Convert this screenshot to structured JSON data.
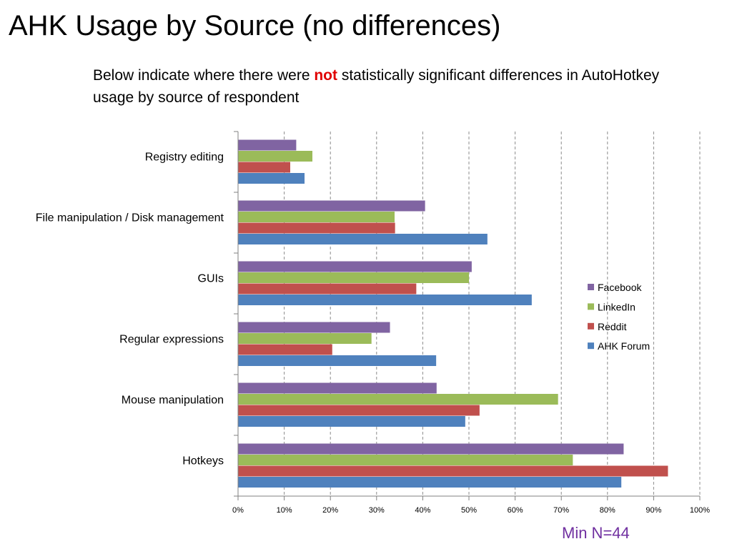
{
  "page": {
    "title": "AHK Usage by Source  (no differences)",
    "subtitle_before": "Below indicate where there were ",
    "subtitle_emphasis": "not",
    "subtitle_after": " statistically significant differences in AutoHotkey usage by source of respondent",
    "footnote": "Min N=44"
  },
  "chart_data": {
    "type": "bar",
    "orientation": "horizontal",
    "title": "",
    "xlabel": "",
    "ylabel": "",
    "xlim": [
      0,
      100
    ],
    "grid": "vertical dashed",
    "legend_position": "right",
    "tick_labels": [
      "0%",
      "10%",
      "20%",
      "30%",
      "40%",
      "50%",
      "60%",
      "70%",
      "80%",
      "90%",
      "100%"
    ],
    "categories": [
      "Registry editing",
      "File manipulation / Disk management",
      "GUIs",
      "Regular expressions",
      "Mouse manipulation",
      "Hotkeys"
    ],
    "series": [
      {
        "name": "Facebook",
        "color": "#8064a2",
        "values": [
          12.6,
          40.5,
          50.6,
          32.9,
          43.0,
          83.5
        ]
      },
      {
        "name": "LinkedIn",
        "color": "#9bbb59",
        "values": [
          16.1,
          33.9,
          50.0,
          28.9,
          69.3,
          72.5
        ]
      },
      {
        "name": "Reddit",
        "color": "#c0504d",
        "values": [
          11.3,
          34.0,
          38.6,
          20.4,
          52.3,
          93.1
        ]
      },
      {
        "name": "AHK Forum",
        "color": "#4f81bd",
        "values": [
          14.4,
          54.0,
          63.6,
          42.9,
          49.2,
          83.0
        ]
      }
    ]
  }
}
